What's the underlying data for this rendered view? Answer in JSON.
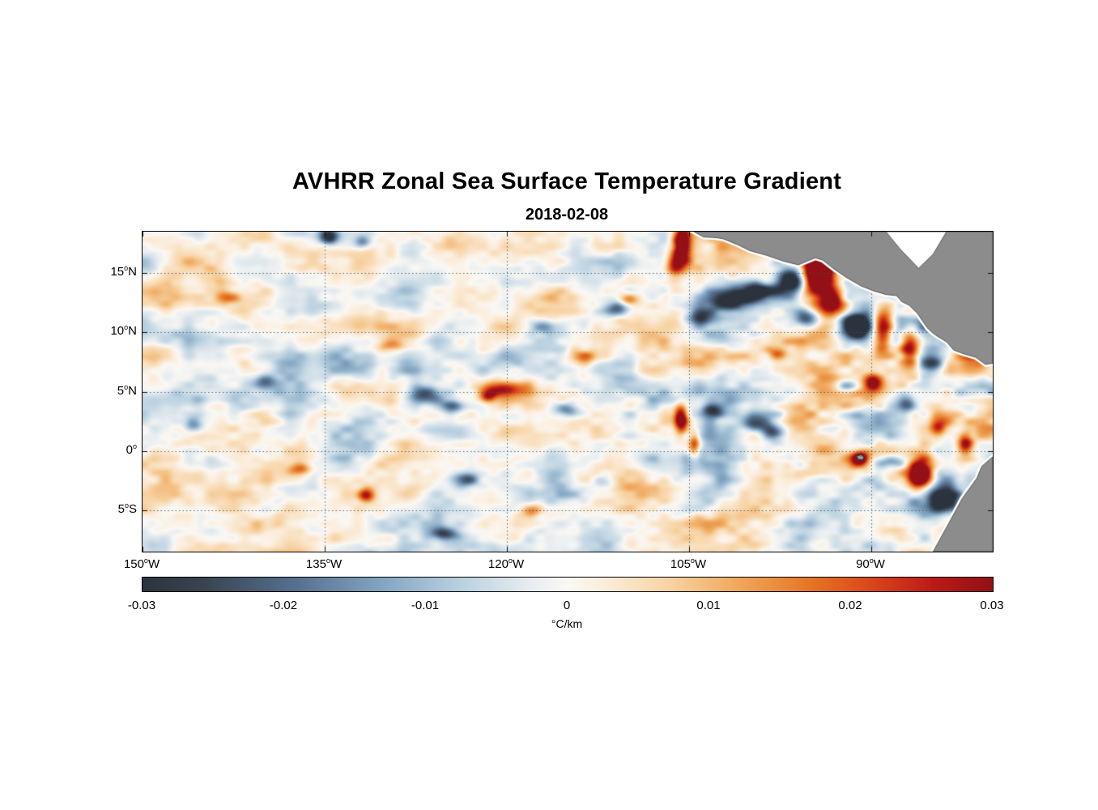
{
  "header": {
    "title": "AVHRR Zonal Sea Surface Temperature Gradient",
    "subtitle": "2018-02-08"
  },
  "chart_data": {
    "type": "heatmap",
    "title": "AVHRR Zonal Sea Surface Temperature Gradient",
    "date": "2018-02-08",
    "projection": "equirectangular",
    "lon_range": [
      -150,
      -80
    ],
    "lat_range": [
      -8.5,
      18.5
    ],
    "degree_symbol": "o",
    "x_ticks": [
      {
        "deg": "150",
        "hem": "W",
        "lon": -150
      },
      {
        "deg": "135",
        "hem": "W",
        "lon": -135
      },
      {
        "deg": "120",
        "hem": "W",
        "lon": -120
      },
      {
        "deg": "105",
        "hem": "W",
        "lon": -105
      },
      {
        "deg": "90",
        "hem": "W",
        "lon": -90
      }
    ],
    "y_ticks": [
      {
        "deg": "15",
        "hem": "N",
        "lat": 15
      },
      {
        "deg": "10",
        "hem": "N",
        "lat": 10
      },
      {
        "deg": "5",
        "hem": "N",
        "lat": 5
      },
      {
        "deg": "0",
        "hem": "",
        "lat": 0
      },
      {
        "deg": "5",
        "hem": "S",
        "lat": -5
      }
    ],
    "grid": {
      "show": true,
      "style": "dotted",
      "color": "rgba(55,85,100,0.85)"
    },
    "colorbar": {
      "label": "°C/km",
      "min": -0.03,
      "max": 0.03,
      "orientation": "horizontal",
      "ticks": [
        {
          "label": "-0.03",
          "value": -0.03
        },
        {
          "label": "-0.02",
          "value": -0.02
        },
        {
          "label": "-0.01",
          "value": -0.01
        },
        {
          "label": "0",
          "value": 0
        },
        {
          "label": "0.01",
          "value": 0.01
        },
        {
          "label": "0.02",
          "value": 0.02
        },
        {
          "label": "0.03",
          "value": 0.03
        }
      ]
    },
    "colormap": [
      {
        "pos": 0.0,
        "color": "#2b333e"
      },
      {
        "pos": 0.07,
        "color": "#39434f"
      },
      {
        "pos": 0.18,
        "color": "#55708f"
      },
      {
        "pos": 0.29,
        "color": "#87a9c5"
      },
      {
        "pos": 0.38,
        "color": "#bdd3e2"
      },
      {
        "pos": 0.46,
        "color": "#e9eef0"
      },
      {
        "pos": 0.5,
        "color": "#faf8f4"
      },
      {
        "pos": 0.54,
        "color": "#fbeedd"
      },
      {
        "pos": 0.62,
        "color": "#f7d3a4"
      },
      {
        "pos": 0.7,
        "color": "#f0a85c"
      },
      {
        "pos": 0.79,
        "color": "#e47323"
      },
      {
        "pos": 0.86,
        "color": "#d8441c"
      },
      {
        "pos": 0.93,
        "color": "#bc1a18"
      },
      {
        "pos": 1.0,
        "color": "#921016"
      }
    ],
    "land": {
      "fill": "#8c8c8c",
      "edge": "#565656",
      "coast_halo": "#ffffff",
      "polygons": [
        {
          "name": "central-america",
          "halo": true,
          "fill": "#8c8c8c",
          "pts": [
            [
              -104.6,
              18.5
            ],
            [
              -103.8,
              18.05
            ],
            [
              -102.8,
              18.0
            ],
            [
              -102.2,
              17.9
            ],
            [
              -101.0,
              17.4
            ],
            [
              -100.0,
              16.9
            ],
            [
              -98.6,
              16.5
            ],
            [
              -97.2,
              16.0
            ],
            [
              -96.0,
              15.7
            ],
            [
              -95.3,
              16.0
            ],
            [
              -94.6,
              16.3
            ],
            [
              -94.0,
              16.1
            ],
            [
              -93.0,
              15.3
            ],
            [
              -92.0,
              14.6
            ],
            [
              -90.8,
              13.9
            ],
            [
              -89.8,
              13.5
            ],
            [
              -88.8,
              13.2
            ],
            [
              -87.9,
              13.1
            ],
            [
              -87.5,
              12.6
            ],
            [
              -86.9,
              12.3
            ],
            [
              -86.2,
              11.6
            ],
            [
              -85.8,
              11.0
            ],
            [
              -85.4,
              10.4
            ],
            [
              -85.0,
              10.0
            ],
            [
              -84.6,
              9.7
            ],
            [
              -83.8,
              9.2
            ],
            [
              -83.2,
              8.5
            ],
            [
              -82.4,
              8.2
            ],
            [
              -81.4,
              7.9
            ],
            [
              -80.6,
              7.3
            ],
            [
              -80.0,
              7.4
            ],
            [
              -80.0,
              18.5
            ]
          ]
        },
        {
          "name": "caribbean-inlet",
          "halo": false,
          "fill": "#ffffff",
          "pts": [
            [
              -88.8,
              18.5
            ],
            [
              -87.6,
              17.0
            ],
            [
              -86.1,
              15.4
            ],
            [
              -84.9,
              16.6
            ],
            [
              -83.8,
              18.5
            ]
          ]
        },
        {
          "name": "south-america",
          "halo": true,
          "fill": "#8c8c8c",
          "pts": [
            [
              -80.0,
              -0.5
            ],
            [
              -80.9,
              -1.3
            ],
            [
              -81.3,
              -2.3
            ],
            [
              -82.5,
              -4.0
            ],
            [
              -83.4,
              -5.7
            ],
            [
              -84.1,
              -7.0
            ],
            [
              -84.9,
              -8.5
            ],
            [
              -80.0,
              -8.5
            ]
          ]
        },
        {
          "name": "galapagos-islands",
          "halo": false,
          "fill": "#9a9a9a",
          "edge": "#333333",
          "pts": [
            [
              -91.25,
              -0.45
            ],
            [
              -90.85,
              -0.3
            ],
            [
              -90.55,
              -0.55
            ],
            [
              -90.75,
              -0.8
            ],
            [
              -91.1,
              -0.72
            ]
          ]
        }
      ]
    },
    "field": {
      "units": "°C/km",
      "description": "Zonal SST gradient field: weak pale mottling over the central/western basin, strong positive (red) and negative (blue) anomalies near the Central American coast (Tehuantepec/Papagayo/Panama wind jets), near the Galapagos, and along the Ecuador/Peru coast.",
      "noise": {
        "seed": 20180208,
        "base_amp": 0.36,
        "east_extra": 0.26,
        "octaves": [
          {
            "wx": 64,
            "wy": 40,
            "amp": 1.0
          },
          {
            "wx": 30,
            "wy": 19,
            "amp": 0.6
          },
          {
            "wx": 14,
            "wy": 9,
            "amp": 0.38
          }
        ]
      },
      "features_format": [
        "lon",
        "lat",
        "amplitude",
        "sigma_lon_deg",
        "sigma_lat_deg"
      ],
      "features": [
        [
          -105.6,
          17.6,
          1.5,
          0.55,
          1.4
        ],
        [
          -106.3,
          15.5,
          0.6,
          0.5,
          0.8
        ],
        [
          -134.6,
          18.1,
          -1.0,
          0.55,
          0.45
        ],
        [
          -131.9,
          17.7,
          -0.55,
          0.5,
          0.35
        ],
        [
          -101.6,
          12.9,
          -1.25,
          1.5,
          0.65
        ],
        [
          -99.2,
          13.5,
          -1.1,
          1.1,
          0.55
        ],
        [
          -104.0,
          11.2,
          -0.75,
          0.8,
          0.5
        ],
        [
          -94.4,
          14.8,
          1.8,
          1.0,
          1.5
        ],
        [
          -93.2,
          12.6,
          1.1,
          0.7,
          0.8
        ],
        [
          -96.6,
          14.3,
          -1.45,
          0.9,
          0.9
        ],
        [
          -95.2,
          11.2,
          -0.85,
          0.7,
          0.5
        ],
        [
          -89.1,
          10.4,
          1.5,
          0.6,
          1.3
        ],
        [
          -91.3,
          10.6,
          -1.5,
          0.75,
          0.7
        ],
        [
          -86.8,
          8.8,
          1.35,
          0.6,
          1.1
        ],
        [
          -85.1,
          7.3,
          -0.8,
          0.8,
          0.6
        ],
        [
          -110.9,
          12.0,
          -0.7,
          0.8,
          0.45
        ],
        [
          -110.0,
          12.8,
          0.65,
          0.6,
          0.4
        ],
        [
          -120.3,
          5.3,
          0.85,
          1.3,
          0.45
        ],
        [
          -126.9,
          4.9,
          -0.8,
          0.9,
          0.55
        ],
        [
          -124.6,
          3.8,
          -0.65,
          0.6,
          0.4
        ],
        [
          -121.6,
          4.6,
          0.75,
          0.5,
          0.35
        ],
        [
          -115.1,
          3.5,
          -0.7,
          0.8,
          0.45
        ],
        [
          -105.7,
          2.7,
          1.2,
          0.4,
          0.9
        ],
        [
          -104.6,
          0.6,
          0.85,
          0.35,
          0.8
        ],
        [
          -103.1,
          3.4,
          -0.7,
          0.6,
          0.4
        ],
        [
          -99.6,
          2.3,
          -0.9,
          0.8,
          0.5
        ],
        [
          -98.0,
          1.6,
          -0.8,
          0.6,
          0.45
        ],
        [
          -145.8,
          2.3,
          -0.7,
          0.6,
          0.5
        ],
        [
          -131.6,
          -3.7,
          0.9,
          0.5,
          0.4
        ],
        [
          -125.2,
          -7.0,
          -0.8,
          0.8,
          0.4
        ],
        [
          -123.3,
          -2.4,
          -0.6,
          0.7,
          0.4
        ],
        [
          -91.0,
          -0.6,
          1.3,
          0.5,
          0.4
        ],
        [
          -88.3,
          -0.9,
          -0.7,
          1.1,
          0.4
        ],
        [
          -86.0,
          -2.0,
          1.6,
          0.7,
          0.9
        ],
        [
          -84.0,
          -4.3,
          -1.3,
          0.9,
          0.7
        ],
        [
          -81.8,
          -5.3,
          1.7,
          0.5,
          1.0
        ],
        [
          -82.3,
          0.6,
          1.0,
          0.45,
          0.6
        ],
        [
          -89.8,
          5.8,
          0.8,
          0.5,
          0.5
        ],
        [
          -92.0,
          5.5,
          -0.6,
          0.7,
          0.4
        ],
        [
          -97.8,
          8.3,
          0.6,
          0.6,
          0.4
        ],
        [
          -87.0,
          4.0,
          -0.7,
          0.6,
          0.5
        ],
        [
          -84.5,
          2.0,
          0.7,
          0.5,
          0.5
        ],
        [
          -113.5,
          8.0,
          0.5,
          0.9,
          0.4
        ],
        [
          -117.0,
          10.5,
          -0.5,
          0.8,
          0.4
        ],
        [
          -129.5,
          9.0,
          0.5,
          0.7,
          0.4
        ],
        [
          -140.0,
          6.0,
          -0.45,
          0.7,
          0.4
        ],
        [
          -143.0,
          13.0,
          0.45,
          0.8,
          0.4
        ],
        [
          -137.0,
          -1.5,
          0.5,
          0.7,
          0.35
        ],
        [
          -118.0,
          -5.0,
          0.55,
          0.6,
          0.4
        ],
        [
          -112.0,
          -2.5,
          -0.55,
          0.7,
          0.4
        ]
      ]
    }
  }
}
